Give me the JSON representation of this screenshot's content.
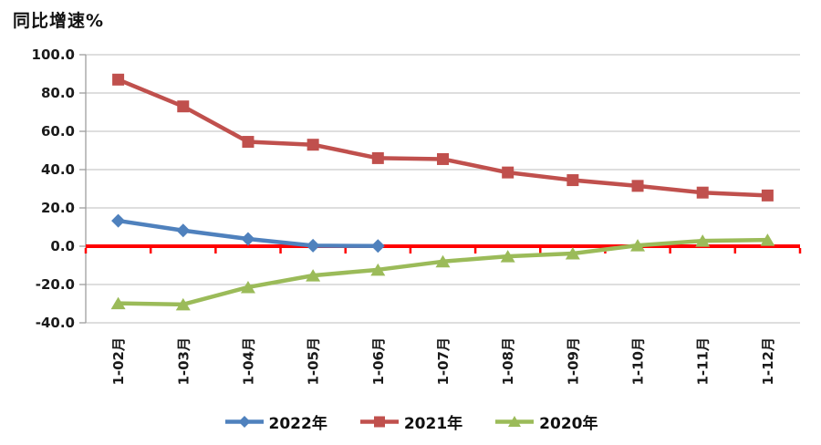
{
  "title": "同比增速%",
  "chart_data": {
    "type": "line",
    "title": "同比增速%",
    "categories": [
      "1-02月",
      "1-03月",
      "1-04月",
      "1-05月",
      "1-06月",
      "1-07月",
      "1-08月",
      "1-09月",
      "1-10月",
      "1-11月",
      "1-12月"
    ],
    "series": [
      {
        "name": "2022年",
        "color": "#4F81BD",
        "marker": "diamond",
        "values": [
          13.3,
          8.2,
          3.8,
          0.3,
          0.1
        ]
      },
      {
        "name": "2021年",
        "color": "#C0504D",
        "marker": "square",
        "values": [
          87.0,
          73.0,
          54.5,
          53.0,
          46.0,
          45.5,
          38.5,
          34.5,
          31.5,
          28.0,
          26.5
        ]
      },
      {
        "name": "2020年",
        "color": "#9BBB59",
        "marker": "triangle",
        "values": [
          -29.8,
          -30.4,
          -21.4,
          -15.3,
          -12.3,
          -8.0,
          -5.3,
          -3.8,
          0.4,
          2.8,
          3.3
        ]
      }
    ],
    "ylim": [
      -40,
      100
    ],
    "yticks": [
      100,
      80,
      60,
      40,
      20,
      0,
      -20,
      -40
    ],
    "ytick_labels": [
      "100.0",
      "80.0",
      "60.0",
      "40.0",
      "20.0",
      "0.0",
      "-20.0",
      "-40.0"
    ],
    "grid": true,
    "legend_position": "bottom",
    "zero_line_color": "#FF0000",
    "gridline_color": "#C9C9C9",
    "axis_color": "#9E9E9E",
    "text_color": "#1A1A1A"
  }
}
